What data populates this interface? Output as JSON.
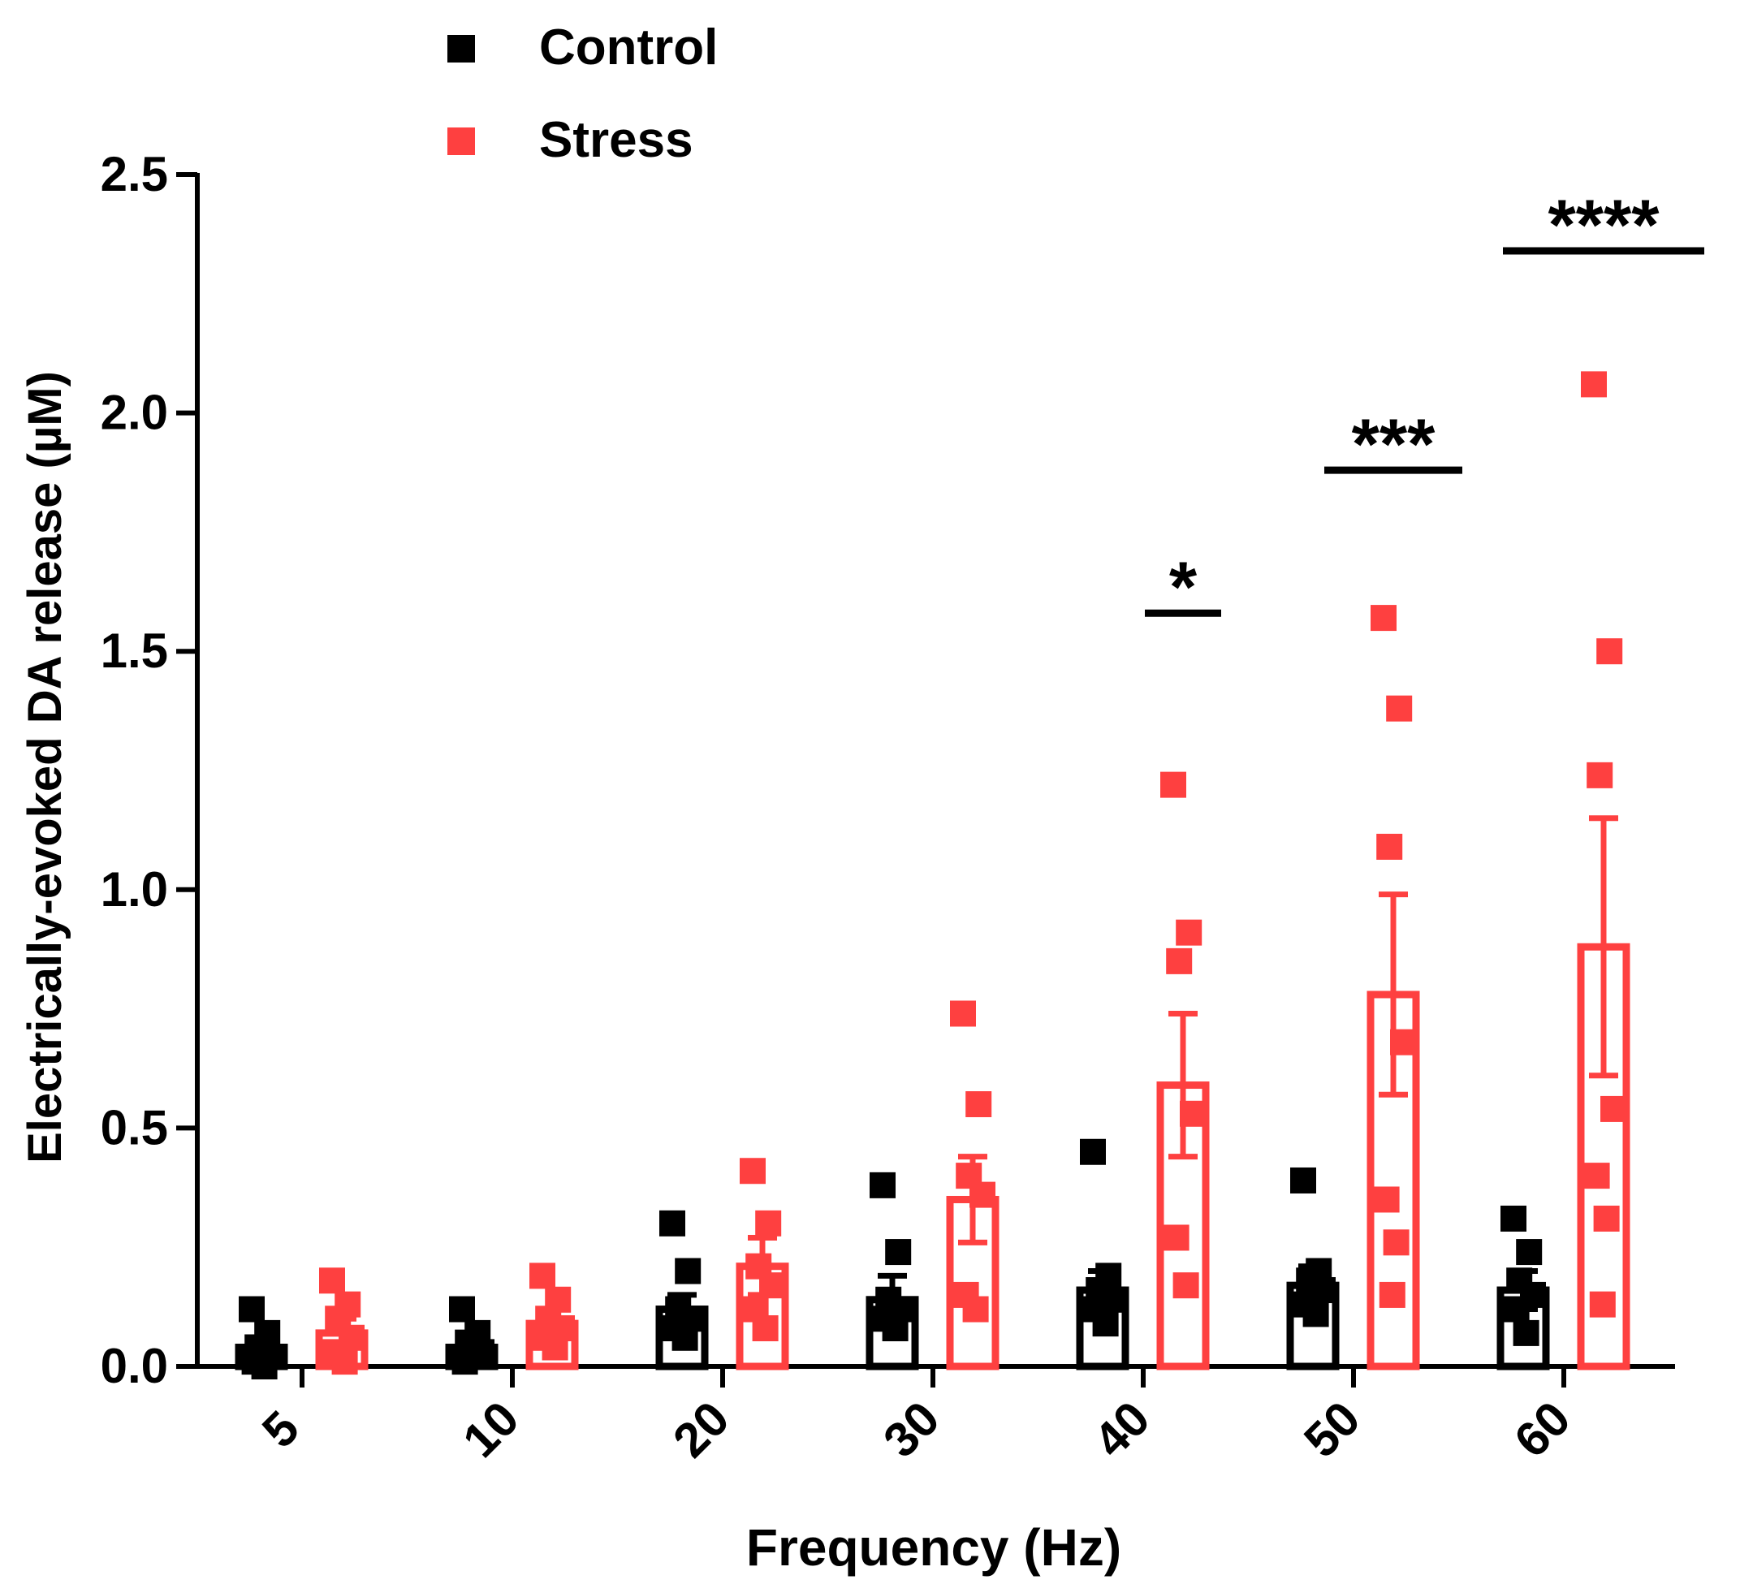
{
  "chart_data": {
    "type": "bar",
    "title": "",
    "xlabel": "Frequency (Hz)",
    "ylabel": "Electrically-evoked DA release (µM)",
    "ylim": [
      0,
      2.5
    ],
    "yticks": [
      "0.0",
      "0.5",
      "1.0",
      "1.5",
      "2.0",
      "2.5"
    ],
    "yticks_values": [
      0,
      0.5,
      1.0,
      1.5,
      2.0,
      2.5
    ],
    "categories": [
      "5",
      "10",
      "20",
      "30",
      "40",
      "50",
      "60"
    ],
    "legend_position": "top-left",
    "series": [
      {
        "name": "Control",
        "color": "#000000",
        "means": [
          0.04,
          0.04,
          0.12,
          0.14,
          0.16,
          0.17,
          0.16
        ],
        "sem": [
          0.02,
          0.02,
          0.03,
          0.05,
          0.04,
          0.04,
          0.04
        ],
        "points": [
          [
            0.12,
            0.07,
            0.04,
            0.02,
            0.01,
            0.0,
            0.03
          ],
          [
            0.12,
            0.07,
            0.05,
            0.03,
            0.01,
            0.02
          ],
          [
            0.3,
            0.2,
            0.12,
            0.1,
            0.08,
            0.06
          ],
          [
            0.38,
            0.24,
            0.14,
            0.12,
            0.1,
            0.08
          ],
          [
            0.45,
            0.19,
            0.16,
            0.14,
            0.12,
            0.09
          ],
          [
            0.39,
            0.2,
            0.18,
            0.16,
            0.13,
            0.11
          ],
          [
            0.31,
            0.24,
            0.18,
            0.15,
            0.12,
            0.07
          ]
        ]
      },
      {
        "name": "Stress",
        "color": "#fe4040",
        "means": [
          0.07,
          0.09,
          0.21,
          0.35,
          0.59,
          0.78,
          0.88
        ],
        "sem": [
          0.03,
          0.03,
          0.06,
          0.09,
          0.15,
          0.21,
          0.27
        ],
        "points": [
          [
            0.18,
            0.13,
            0.1,
            0.06,
            0.03,
            0.01
          ],
          [
            0.19,
            0.14,
            0.1,
            0.08,
            0.06,
            0.04
          ],
          [
            0.41,
            0.3,
            0.21,
            0.17,
            0.12,
            0.08
          ],
          [
            0.74,
            0.55,
            0.4,
            0.36,
            0.15,
            0.12
          ],
          [
            1.22,
            0.91,
            0.85,
            0.53,
            0.27,
            0.17
          ],
          [
            1.57,
            1.38,
            1.09,
            0.68,
            0.35,
            0.26,
            0.15
          ],
          [
            2.06,
            1.5,
            1.24,
            0.54,
            0.4,
            0.31,
            0.13
          ]
        ]
      }
    ],
    "annotations": [
      {
        "category": "40",
        "text": "*",
        "line_y": 1.58
      },
      {
        "category": "50",
        "text": "***",
        "line_y": 1.88
      },
      {
        "category": "60",
        "text": "****",
        "line_y": 2.34
      }
    ]
  }
}
